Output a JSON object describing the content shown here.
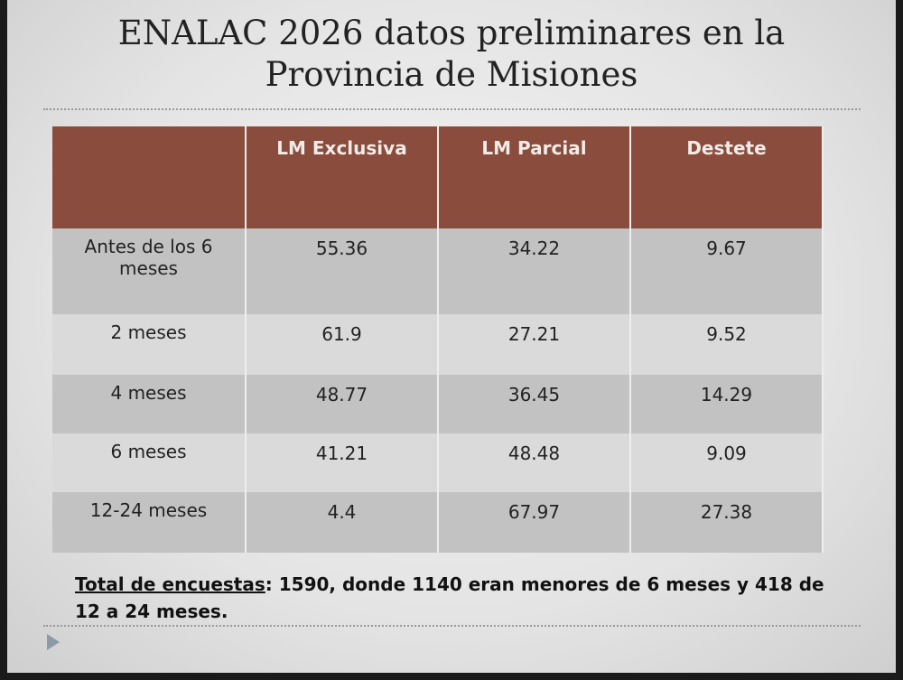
{
  "title": "ENALAC 2026 datos preliminares en la Provincia de Misiones",
  "table": {
    "columns": [
      "LM Exclusiva",
      "LM Parcial",
      "Destete"
    ],
    "rows": [
      {
        "label": "Antes de los 6 meses",
        "values": [
          "55.36",
          "34.22",
          "9.67"
        ]
      },
      {
        "label": "2 meses",
        "values": [
          "61.9",
          "27.21",
          "9.52"
        ]
      },
      {
        "label": "4 meses",
        "values": [
          "48.77",
          "36.45",
          "14.29"
        ]
      },
      {
        "label": "6 meses",
        "values": [
          "41.21",
          "48.48",
          "9.09"
        ]
      },
      {
        "label": "12-24 meses",
        "values": [
          "4.4",
          "67.97",
          "27.38"
        ]
      }
    ]
  },
  "footer": {
    "label": "Total de encuestas",
    "text": ": 1590, donde 1140 eran menores de 6 meses y 418 de 12 a 24 meses."
  }
}
